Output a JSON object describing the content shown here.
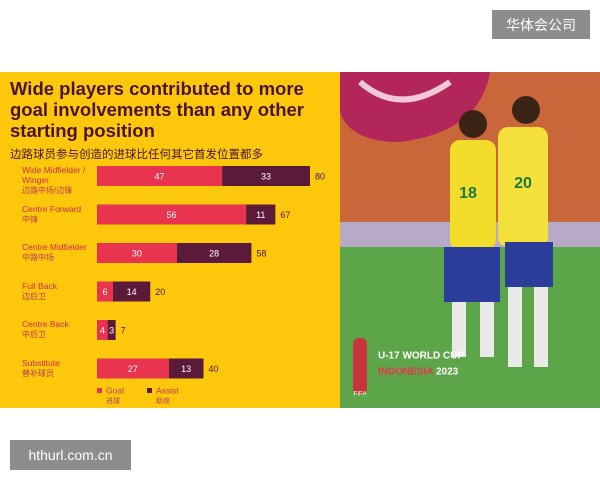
{
  "chart_data": {
    "type": "stacked-bar-horizontal",
    "title": "Wide players contributed to more goal involvements than any other starting position",
    "subtitle": "边路球员参与创造的进球比任何其它首发位置都多",
    "categories": [
      "Wide Midfielder / Winger",
      "Centre Forward",
      "Centre Midfielder",
      "Full Back",
      "Centre Back",
      "Substitute"
    ],
    "categories_zh": [
      "边路中场/边锋",
      "中锋",
      "中路中场",
      "边后卫",
      "中后卫",
      "替补球员"
    ],
    "series": [
      {
        "name": "Goal",
        "name_zh": "进球",
        "color": "#e8344e",
        "values": [
          47,
          56,
          30,
          6,
          4,
          27
        ]
      },
      {
        "name": "Assist",
        "name_zh": "助攻",
        "color": "#5c1a3b",
        "values": [
          33,
          11,
          28,
          14,
          3,
          13
        ]
      }
    ],
    "totals": [
      80,
      67,
      58,
      20,
      7,
      40
    ]
  },
  "watermark_top": "华体会公司",
  "watermark_bottom": "hthurl.com.cn",
  "photo": {
    "event": "U-17 WORLD CUP",
    "host": "INDONESIA",
    "year": "2023",
    "badge": "FIFA",
    "jersey_numbers": [
      "18",
      "20"
    ]
  }
}
